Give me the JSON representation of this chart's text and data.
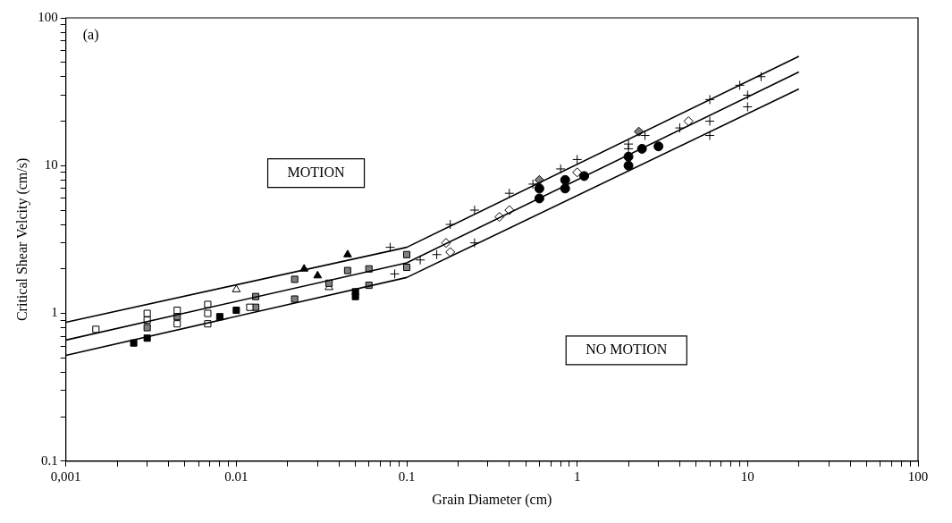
{
  "chart_data": {
    "type": "scatter",
    "xlabel": "Grain Diameter (cm)",
    "ylabel": "Critical Shear Velcity (cm/s)",
    "log": "xy",
    "grid": false,
    "legend": false,
    "annotations": [
      "(a)",
      "MOTION",
      "NO MOTION"
    ],
    "xlim": [
      0.001,
      100
    ],
    "ylim": [
      0.1,
      100
    ],
    "xticks": [
      {
        "value": 0.001,
        "label": "0,001"
      },
      {
        "value": 0.002,
        "label": null
      },
      {
        "value": 0.003,
        "label": null
      },
      {
        "value": 0.004,
        "label": null
      },
      {
        "value": 0.005,
        "label": null
      },
      {
        "value": 0.006,
        "label": null
      },
      {
        "value": 0.007,
        "label": null
      },
      {
        "value": 0.008,
        "label": null
      },
      {
        "value": 0.009,
        "label": null
      },
      {
        "value": 0.01,
        "label": "0.01"
      },
      {
        "value": 0.02,
        "label": null
      },
      {
        "value": 0.03,
        "label": null
      },
      {
        "value": 0.04,
        "label": null
      },
      {
        "value": 0.05,
        "label": null
      },
      {
        "value": 0.06,
        "label": null
      },
      {
        "value": 0.07,
        "label": null
      },
      {
        "value": 0.08,
        "label": null
      },
      {
        "value": 0.09,
        "label": null
      },
      0.1,
      {
        "value": 0.2,
        "label": null
      },
      {
        "value": 0.3,
        "label": null
      },
      {
        "value": 0.4,
        "label": null
      },
      {
        "value": 0.5,
        "label": null
      },
      {
        "value": 0.6,
        "label": null
      },
      {
        "value": 0.7,
        "label": null
      },
      {
        "value": 0.8,
        "label": null
      },
      {
        "value": 0.9,
        "label": null
      },
      1,
      {
        "value": 2,
        "label": null
      },
      {
        "value": 3,
        "label": null
      },
      {
        "value": 4,
        "label": null
      },
      {
        "value": 5,
        "label": null
      },
      {
        "value": 6,
        "label": null
      },
      {
        "value": 7,
        "label": null
      },
      {
        "value": 8,
        "label": null
      },
      {
        "value": 9,
        "label": null
      },
      10,
      {
        "value": 20,
        "label": null
      },
      {
        "value": 30,
        "label": null
      },
      {
        "value": 40,
        "label": null
      },
      {
        "value": 50,
        "label": null
      },
      {
        "value": 60,
        "label": null
      },
      {
        "value": 70,
        "label": null
      },
      {
        "value": 80,
        "label": null
      },
      {
        "value": 90,
        "label": null
      },
      100
    ],
    "yticks": [
      0.1,
      {
        "value": 0.2,
        "label": null
      },
      {
        "value": 0.3,
        "label": null
      },
      {
        "value": 0.4,
        "label": null
      },
      {
        "value": 0.5,
        "label": null
      },
      {
        "value": 0.6,
        "label": null
      },
      {
        "value": 0.7,
        "label": null
      },
      {
        "value": 0.8,
        "label": null
      },
      {
        "value": 0.9,
        "label": null
      },
      1,
      {
        "value": 2,
        "label": null
      },
      {
        "value": 3,
        "label": null
      },
      {
        "value": 4,
        "label": null
      },
      {
        "value": 5,
        "label": null
      },
      {
        "value": 6,
        "label": null
      },
      {
        "value": 7,
        "label": null
      },
      {
        "value": 8,
        "label": null
      },
      {
        "value": 9,
        "label": null
      },
      10,
      {
        "value": 20,
        "label": null
      },
      {
        "value": 30,
        "label": null
      },
      {
        "value": 40,
        "label": null
      },
      {
        "value": 50,
        "label": null
      },
      {
        "value": 60,
        "label": null
      },
      {
        "value": 70,
        "label": null
      },
      {
        "value": 80,
        "label": null
      },
      {
        "value": 90,
        "label": null
      },
      100
    ],
    "series": [
      {
        "type": "line",
        "color": "#000000",
        "marker": "none",
        "x": [
          0.001,
          0.1,
          20
        ],
        "values": [
          0.87,
          2.8,
          55
        ]
      },
      {
        "type": "line",
        "color": "#000000",
        "marker": "none",
        "x": [
          0.001,
          0.1,
          20
        ],
        "values": [
          0.66,
          2.2,
          43
        ]
      },
      {
        "type": "line",
        "color": "#000000",
        "marker": "none",
        "x": [
          0.001,
          0.1,
          20
        ],
        "values": [
          0.52,
          1.75,
          33
        ]
      },
      {
        "color": "#ffffff",
        "marker": "square",
        "x": [
          0.0015,
          0.003,
          0.003,
          0.0045,
          0.0045,
          0.0068,
          0.0068,
          0.0068,
          0.012
        ],
        "values": [
          0.78,
          1.0,
          0.9,
          1.05,
          0.85,
          1.15,
          1.0,
          0.85,
          1.1
        ]
      },
      {
        "color": "#808080",
        "marker": "square",
        "x": [
          0.003,
          0.0045,
          0.013,
          0.013,
          0.022,
          0.022,
          0.035,
          0.045,
          0.06,
          0.06,
          0.1,
          0.1
        ],
        "values": [
          0.8,
          0.95,
          1.3,
          1.1,
          1.7,
          1.25,
          1.6,
          1.95,
          2.0,
          1.55,
          2.5,
          2.05
        ]
      },
      {
        "color": "#000000",
        "marker": "square",
        "x": [
          0.0025,
          0.003,
          0.008,
          0.01,
          0.05,
          0.05
        ],
        "values": [
          0.63,
          0.68,
          0.95,
          1.05,
          1.4,
          1.3
        ]
      },
      {
        "color": "#ffffff",
        "marker": "triangle",
        "x": [
          0.01,
          0.035
        ],
        "values": [
          1.45,
          1.5
        ]
      },
      {
        "color": "#000000",
        "marker": "triangle",
        "x": [
          0.025,
          0.045,
          0.03
        ],
        "values": [
          2.0,
          2.5,
          1.8
        ]
      },
      {
        "color": "#000000",
        "marker": "cross",
        "x": [
          0.08,
          0.085,
          0.15,
          0.18,
          0.25,
          0.4,
          0.55,
          0.8,
          2,
          2.5,
          6,
          9,
          10,
          12,
          6,
          6,
          10
        ],
        "values": [
          2.8,
          1.85,
          2.5,
          4.0,
          5.0,
          6.5,
          7.5,
          9.5,
          13,
          16,
          28,
          35,
          30,
          40,
          20,
          16,
          25
        ]
      },
      {
        "color": "#000000",
        "marker": "circle",
        "x": [
          0.6,
          0.6,
          0.85,
          0.85,
          1.1,
          2,
          2,
          2.4,
          3
        ],
        "values": [
          7,
          6,
          8,
          7,
          8.5,
          10,
          11.5,
          13,
          13.5
        ]
      },
      {
        "color": "#ffffff",
        "marker": "diamond",
        "x": [
          0.17,
          0.18,
          0.35,
          0.4,
          1,
          4.5
        ],
        "values": [
          3,
          2.6,
          4.5,
          5,
          9,
          20
        ]
      },
      {
        "color": "#808080",
        "marker": "diamond",
        "x": [
          0.6,
          2.3
        ],
        "values": [
          8,
          17
        ]
      },
      {
        "color": "#000000",
        "marker": "cross",
        "x": [
          0.12,
          0.25,
          1,
          2,
          4
        ],
        "values": [
          2.3,
          3,
          11,
          14,
          18
        ]
      }
    ]
  }
}
